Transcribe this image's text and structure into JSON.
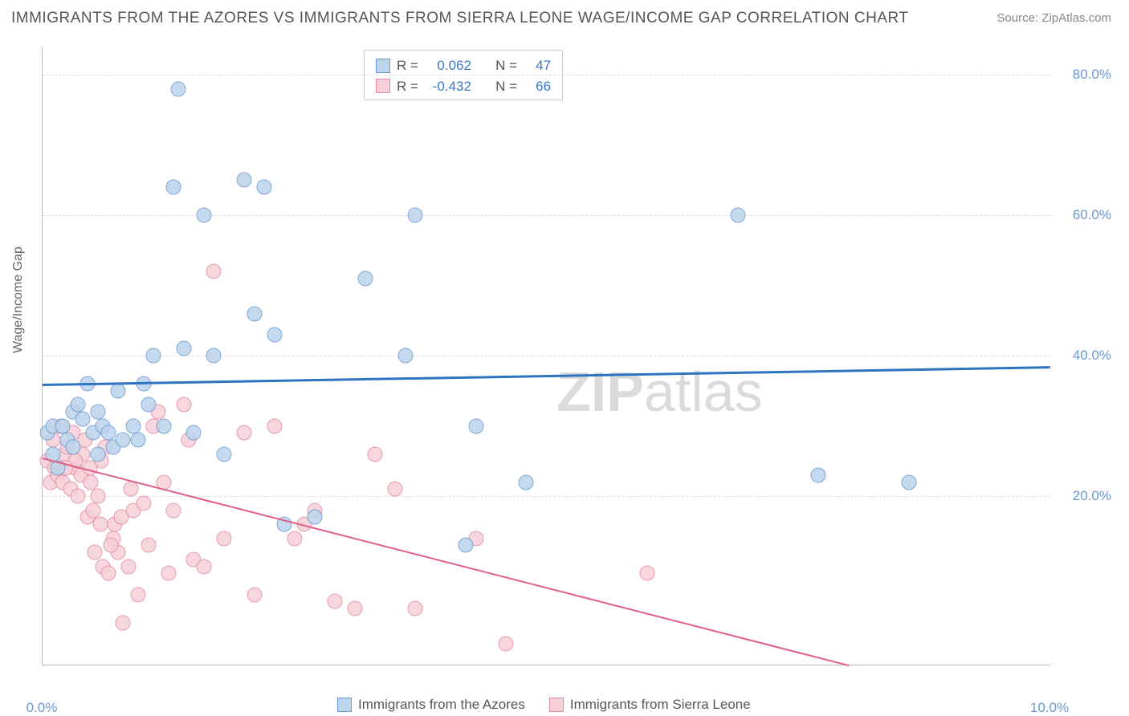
{
  "title": "IMMIGRANTS FROM THE AZORES VS IMMIGRANTS FROM SIERRA LEONE WAGE/INCOME GAP CORRELATION CHART",
  "source": "Source: ZipAtlas.com",
  "ylabel": "Wage/Income Gap",
  "watermark_bold": "ZIP",
  "watermark_light": "atlas",
  "chart": {
    "type": "scatter",
    "background_color": "#ffffff",
    "grid_color": "#dddddd",
    "axis_color": "#bbbbbb",
    "tick_color": "#6a98d0",
    "xlim": [
      0,
      10
    ],
    "ylim": [
      -4,
      84
    ],
    "xticks": [
      {
        "v": 0,
        "label": "0.0%"
      },
      {
        "v": 10,
        "label": "10.0%"
      }
    ],
    "yticks": [
      {
        "v": 20,
        "label": "20.0%"
      },
      {
        "v": 40,
        "label": "40.0%"
      },
      {
        "v": 60,
        "label": "60.0%"
      },
      {
        "v": 80,
        "label": "80.0%"
      }
    ],
    "series": [
      {
        "name": "Immigrants from the Azores",
        "fill": "#bcd4ec",
        "stroke": "#6a98d0",
        "marker_size": 19,
        "stroke_width": 1.3,
        "r": "0.062",
        "n": "47",
        "trend": {
          "x1": 0,
          "y1": 36.0,
          "x2": 10,
          "y2": 38.5,
          "color": "#2e74c4",
          "width": 2.5
        },
        "points": [
          [
            0.05,
            29
          ],
          [
            0.1,
            30
          ],
          [
            0.1,
            26
          ],
          [
            0.15,
            24
          ],
          [
            0.2,
            30
          ],
          [
            0.25,
            28
          ],
          [
            0.3,
            27
          ],
          [
            0.3,
            32
          ],
          [
            0.4,
            31
          ],
          [
            0.45,
            36
          ],
          [
            0.5,
            29
          ],
          [
            0.55,
            26
          ],
          [
            0.6,
            30
          ],
          [
            0.7,
            27
          ],
          [
            0.75,
            35
          ],
          [
            0.8,
            28
          ],
          [
            0.9,
            30
          ],
          [
            1.0,
            36
          ],
          [
            1.1,
            40
          ],
          [
            1.2,
            30
          ],
          [
            1.3,
            64
          ],
          [
            1.35,
            78
          ],
          [
            1.4,
            41
          ],
          [
            1.5,
            29
          ],
          [
            1.6,
            60
          ],
          [
            1.7,
            40
          ],
          [
            1.8,
            26
          ],
          [
            2.0,
            65
          ],
          [
            2.1,
            46
          ],
          [
            2.2,
            64
          ],
          [
            2.3,
            43
          ],
          [
            2.4,
            16
          ],
          [
            2.7,
            17
          ],
          [
            3.2,
            51
          ],
          [
            3.6,
            40
          ],
          [
            3.7,
            60
          ],
          [
            4.2,
            13
          ],
          [
            4.3,
            30
          ],
          [
            4.8,
            22
          ],
          [
            6.9,
            60
          ],
          [
            7.7,
            23
          ],
          [
            8.6,
            22
          ],
          [
            0.35,
            33
          ],
          [
            0.65,
            29
          ],
          [
            0.95,
            28
          ],
          [
            1.05,
            33
          ],
          [
            0.55,
            32
          ]
        ]
      },
      {
        "name": "Immigrants from Sierra Leone",
        "fill": "#f6cfd8",
        "stroke": "#e28aa2",
        "marker_size": 19,
        "stroke_width": 1.3,
        "r": "-0.432",
        "n": "66",
        "trend": {
          "x1": 0,
          "y1": 25.5,
          "x2": 8.0,
          "y2": -4.0,
          "color": "#e06088",
          "width": 2
        },
        "points": [
          [
            0.05,
            25
          ],
          [
            0.08,
            22
          ],
          [
            0.1,
            28
          ],
          [
            0.12,
            24
          ],
          [
            0.15,
            23
          ],
          [
            0.18,
            30
          ],
          [
            0.2,
            22
          ],
          [
            0.22,
            26
          ],
          [
            0.25,
            27
          ],
          [
            0.28,
            21
          ],
          [
            0.3,
            29
          ],
          [
            0.32,
            24
          ],
          [
            0.35,
            20
          ],
          [
            0.38,
            23
          ],
          [
            0.4,
            26
          ],
          [
            0.42,
            28
          ],
          [
            0.45,
            17
          ],
          [
            0.48,
            22
          ],
          [
            0.5,
            18
          ],
          [
            0.52,
            12
          ],
          [
            0.55,
            20
          ],
          [
            0.58,
            25
          ],
          [
            0.6,
            10
          ],
          [
            0.62,
            27
          ],
          [
            0.65,
            9
          ],
          [
            0.7,
            14
          ],
          [
            0.72,
            16
          ],
          [
            0.75,
            12
          ],
          [
            0.78,
            17
          ],
          [
            0.8,
            2
          ],
          [
            0.85,
            10
          ],
          [
            0.9,
            18
          ],
          [
            0.95,
            6
          ],
          [
            1.0,
            19
          ],
          [
            1.05,
            13
          ],
          [
            1.1,
            30
          ],
          [
            1.15,
            32
          ],
          [
            1.2,
            22
          ],
          [
            1.25,
            9
          ],
          [
            1.3,
            18
          ],
          [
            1.4,
            33
          ],
          [
            1.5,
            11
          ],
          [
            1.6,
            10
          ],
          [
            1.7,
            52
          ],
          [
            1.8,
            14
          ],
          [
            2.0,
            29
          ],
          [
            2.1,
            6
          ],
          [
            2.3,
            30
          ],
          [
            2.5,
            14
          ],
          [
            2.6,
            16
          ],
          [
            2.7,
            18
          ],
          [
            2.9,
            5
          ],
          [
            3.1,
            4
          ],
          [
            3.3,
            26
          ],
          [
            3.5,
            21
          ],
          [
            3.7,
            4
          ],
          [
            4.3,
            14
          ],
          [
            4.6,
            -1
          ],
          [
            6.0,
            9
          ],
          [
            0.33,
            25
          ],
          [
            0.47,
            24
          ],
          [
            0.57,
            16
          ],
          [
            0.68,
            13
          ],
          [
            0.88,
            21
          ],
          [
            1.45,
            28
          ],
          [
            0.23,
            24
          ]
        ]
      }
    ]
  },
  "stats_labels": {
    "r": "R  =",
    "n": "N  ="
  }
}
